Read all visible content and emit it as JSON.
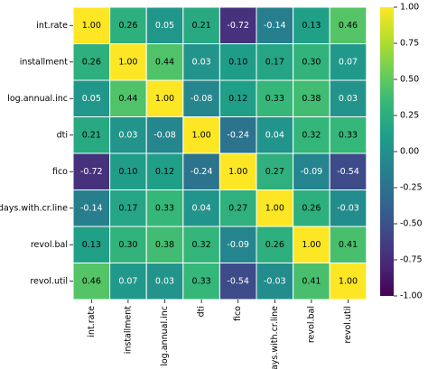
{
  "chart_data": {
    "type": "heatmap",
    "title": "",
    "xlabel": "",
    "ylabel": "",
    "row_labels": [
      "int.rate",
      "installment",
      "log.annual.inc",
      "dti",
      "fico",
      "days.with.cr.line",
      "revol.bal",
      "revol.util"
    ],
    "col_labels": [
      "int.rate",
      "installment",
      "log.annual.inc",
      "dti",
      "fico",
      "days.with.cr.line",
      "revol.bal",
      "revol.util"
    ],
    "values": [
      [
        1.0,
        0.26,
        0.05,
        0.21,
        -0.72,
        -0.14,
        0.13,
        0.46
      ],
      [
        0.26,
        1.0,
        0.44,
        0.03,
        0.1,
        0.17,
        0.3,
        0.07
      ],
      [
        0.05,
        0.44,
        1.0,
        -0.08,
        0.12,
        0.33,
        0.38,
        0.03
      ],
      [
        0.21,
        0.03,
        -0.08,
        1.0,
        -0.24,
        0.04,
        0.32,
        0.33
      ],
      [
        -0.72,
        0.1,
        0.12,
        -0.24,
        1.0,
        0.27,
        -0.09,
        -0.54
      ],
      [
        -0.14,
        0.17,
        0.33,
        0.04,
        0.27,
        1.0,
        0.26,
        -0.03
      ],
      [
        0.13,
        0.3,
        0.38,
        0.32,
        -0.09,
        0.26,
        1.0,
        0.41
      ],
      [
        0.46,
        0.07,
        0.03,
        0.33,
        -0.54,
        -0.03,
        0.41,
        1.0
      ]
    ],
    "annotation_format": "0.00",
    "colormap": "viridis",
    "vmin": -1.0,
    "vmax": 1.0,
    "colorbar_ticks": [
      "1.00",
      "0.75",
      "0.50",
      "0.25",
      "0.00",
      "-0.25",
      "-0.50",
      "-0.75",
      "-1.00"
    ],
    "colorbar_tick_values": [
      1.0,
      0.75,
      0.5,
      0.25,
      0.0,
      -0.25,
      -0.5,
      -0.75,
      -1.0
    ],
    "cell_border_color": "#ffffff",
    "colorbar_placement": "right",
    "colors": {
      "viridis_stops": [
        "#440154",
        "#482878",
        "#3e4989",
        "#31688e",
        "#26828e",
        "#1f9e89",
        "#35b779",
        "#6ece58",
        "#b5de2b",
        "#fde725"
      ]
    }
  }
}
